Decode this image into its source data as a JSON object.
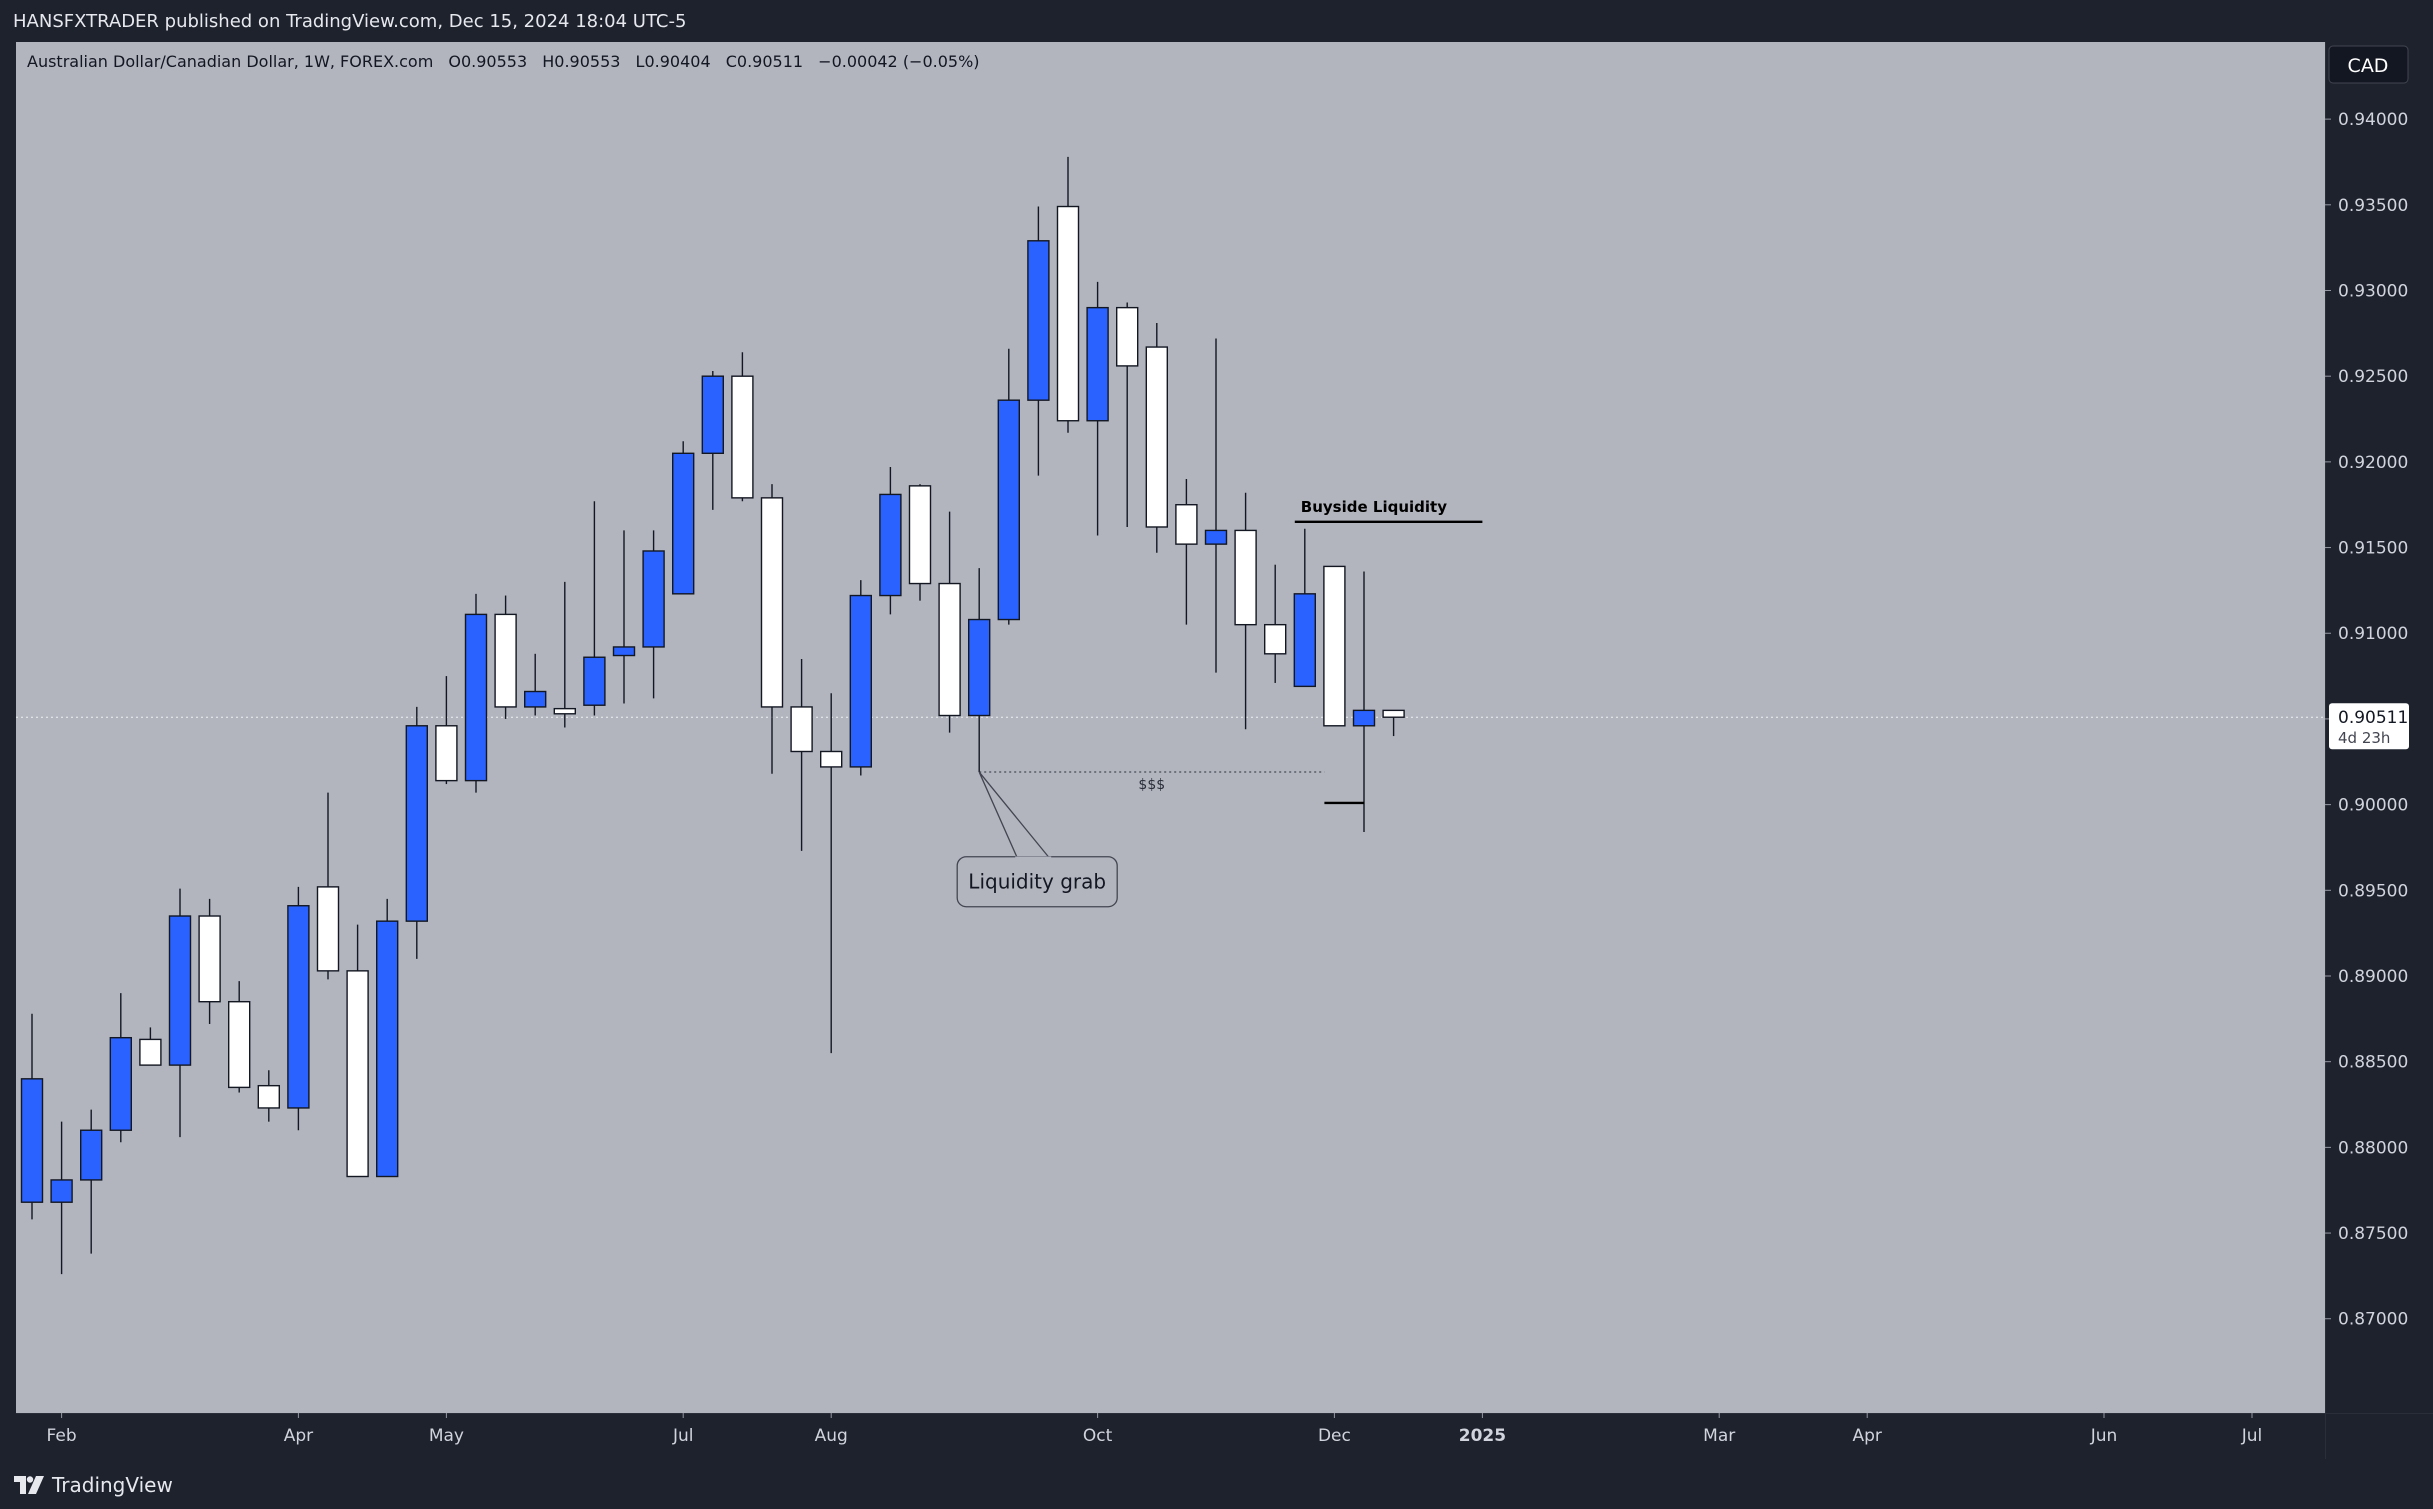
{
  "header": {
    "published_text": "HANSFXTRADER published on TradingView.com, Dec 15, 2024 18:04 UTC-5"
  },
  "footer": {
    "brand": "TradingView",
    "logo_icon": "tradingview-logo-icon"
  },
  "legend": {
    "symbol": "Australian Dollar/Canadian Dollar, 1W, FOREX.com",
    "open": "O0.90553",
    "high": "H0.90553",
    "low": "L0.90404",
    "close": "C0.90511",
    "change": "−0.00042 (−0.05%)"
  },
  "price_axis": {
    "currency_label": "CAD",
    "current_price": "0.90511",
    "countdown": "4d 23h"
  },
  "colors": {
    "background": "#b2b5be",
    "chrome": "#1e222d",
    "up_candle": "#2962ff",
    "down_candle": "#ffffff",
    "wick": "#131722"
  },
  "chart_data": {
    "type": "candlestick",
    "symbol": "AUDCAD",
    "timeframe": "1W",
    "ylim": [
      0.8645,
      0.9445
    ],
    "y_ticks": [
      "0.94000",
      "0.93500",
      "0.93000",
      "0.92500",
      "0.92000",
      "0.91500",
      "0.91000",
      "0.90500",
      "0.90000",
      "0.89500",
      "0.89000",
      "0.88500",
      "0.88000",
      "0.87500",
      "0.87000"
    ],
    "x_labels": [
      {
        "label": "Feb",
        "index": 1
      },
      {
        "label": "Apr",
        "index": 9
      },
      {
        "label": "May",
        "index": 14
      },
      {
        "label": "Jul",
        "index": 22
      },
      {
        "label": "Aug",
        "index": 27
      },
      {
        "label": "Oct",
        "index": 36
      },
      {
        "label": "Dec",
        "index": 44
      },
      {
        "label": "2025",
        "index": 49
      },
      {
        "label": "Mar",
        "index": 57
      },
      {
        "label": "Apr",
        "index": 62
      },
      {
        "label": "Jun",
        "index": 70
      },
      {
        "label": "Jul",
        "index": 75
      }
    ],
    "candles": [
      {
        "o": 0.8768,
        "h": 0.8878,
        "l": 0.8758,
        "c": 0.884
      },
      {
        "o": 0.8768,
        "h": 0.8815,
        "l": 0.8726,
        "c": 0.8781
      },
      {
        "o": 0.8781,
        "h": 0.8822,
        "l": 0.8738,
        "c": 0.881
      },
      {
        "o": 0.881,
        "h": 0.889,
        "l": 0.8803,
        "c": 0.8864
      },
      {
        "o": 0.8863,
        "h": 0.887,
        "l": 0.8848,
        "c": 0.8848
      },
      {
        "o": 0.8848,
        "h": 0.8951,
        "l": 0.8806,
        "c": 0.8935
      },
      {
        "o": 0.8935,
        "h": 0.8945,
        "l": 0.8872,
        "c": 0.8885
      },
      {
        "o": 0.8885,
        "h": 0.8897,
        "l": 0.8832,
        "c": 0.8835
      },
      {
        "o": 0.8836,
        "h": 0.8845,
        "l": 0.8815,
        "c": 0.8823
      },
      {
        "o": 0.8823,
        "h": 0.8952,
        "l": 0.881,
        "c": 0.8941
      },
      {
        "o": 0.8952,
        "h": 0.9007,
        "l": 0.8898,
        "c": 0.8903
      },
      {
        "o": 0.8903,
        "h": 0.893,
        "l": 0.8783,
        "c": 0.8783
      },
      {
        "o": 0.8783,
        "h": 0.8945,
        "l": 0.8783,
        "c": 0.8932
      },
      {
        "o": 0.8932,
        "h": 0.9057,
        "l": 0.891,
        "c": 0.9046
      },
      {
        "o": 0.9046,
        "h": 0.9075,
        "l": 0.9012,
        "c": 0.9014
      },
      {
        "o": 0.9014,
        "h": 0.9123,
        "l": 0.9007,
        "c": 0.9111
      },
      {
        "o": 0.9111,
        "h": 0.9122,
        "l": 0.905,
        "c": 0.9057
      },
      {
        "o": 0.9057,
        "h": 0.9088,
        "l": 0.9052,
        "c": 0.9066
      },
      {
        "o": 0.9056,
        "h": 0.913,
        "l": 0.9045,
        "c": 0.9053
      },
      {
        "o": 0.9058,
        "h": 0.9177,
        "l": 0.9052,
        "c": 0.9086
      },
      {
        "o": 0.9087,
        "h": 0.916,
        "l": 0.9059,
        "c": 0.9092
      },
      {
        "o": 0.9092,
        "h": 0.916,
        "l": 0.9062,
        "c": 0.9148
      },
      {
        "o": 0.9123,
        "h": 0.9212,
        "l": 0.9123,
        "c": 0.9205
      },
      {
        "o": 0.9205,
        "h": 0.9253,
        "l": 0.9172,
        "c": 0.925
      },
      {
        "o": 0.925,
        "h": 0.9264,
        "l": 0.9177,
        "c": 0.9179
      },
      {
        "o": 0.9179,
        "h": 0.9187,
        "l": 0.9018,
        "c": 0.9057
      },
      {
        "o": 0.9057,
        "h": 0.9085,
        "l": 0.8973,
        "c": 0.9031
      },
      {
        "o": 0.9031,
        "h": 0.9065,
        "l": 0.8855,
        "c": 0.9022
      },
      {
        "o": 0.9022,
        "h": 0.9131,
        "l": 0.9017,
        "c": 0.9122
      },
      {
        "o": 0.9122,
        "h": 0.9197,
        "l": 0.9111,
        "c": 0.9181
      },
      {
        "o": 0.9186,
        "h": 0.9187,
        "l": 0.9119,
        "c": 0.9129
      },
      {
        "o": 0.9129,
        "h": 0.9171,
        "l": 0.9042,
        "c": 0.9052
      },
      {
        "o": 0.9052,
        "h": 0.9138,
        "l": 0.9019,
        "c": 0.9108
      },
      {
        "o": 0.9108,
        "h": 0.9266,
        "l": 0.9105,
        "c": 0.9236
      },
      {
        "o": 0.9236,
        "h": 0.9349,
        "l": 0.9192,
        "c": 0.9329
      },
      {
        "o": 0.9349,
        "h": 0.9378,
        "l": 0.9217,
        "c": 0.9224
      },
      {
        "o": 0.9224,
        "h": 0.9305,
        "l": 0.9157,
        "c": 0.929
      },
      {
        "o": 0.929,
        "h": 0.9293,
        "l": 0.9162,
        "c": 0.9256
      },
      {
        "o": 0.9267,
        "h": 0.9281,
        "l": 0.9147,
        "c": 0.9162
      },
      {
        "o": 0.9175,
        "h": 0.919,
        "l": 0.9105,
        "c": 0.9152
      },
      {
        "o": 0.9152,
        "h": 0.9272,
        "l": 0.9077,
        "c": 0.916
      },
      {
        "o": 0.916,
        "h": 0.9182,
        "l": 0.9044,
        "c": 0.9105
      },
      {
        "o": 0.9105,
        "h": 0.914,
        "l": 0.9071,
        "c": 0.9088
      },
      {
        "o": 0.9069,
        "h": 0.9161,
        "l": 0.9069,
        "c": 0.9123
      },
      {
        "o": 0.9139,
        "h": 0.9139,
        "l": 0.9046,
        "c": 0.9046
      },
      {
        "o": 0.9046,
        "h": 0.9136,
        "l": 0.8984,
        "c": 0.9055
      },
      {
        "o": 0.9055,
        "h": 0.9055,
        "l": 0.904,
        "c": 0.9051
      }
    ],
    "annotations": [
      {
        "type": "level",
        "label": "Buyside Liquidity",
        "price": 0.9165,
        "from_index": 43,
        "to_index": 49
      },
      {
        "type": "dotted-level",
        "label": "$$$",
        "price": 0.9019,
        "from_index": 32,
        "to_index": 44
      },
      {
        "type": "level",
        "label": "",
        "price": 0.9001,
        "from_index": 44,
        "to_index": 45
      },
      {
        "type": "callout",
        "label": "Liquidity grab",
        "anchor_index": 32,
        "anchor_price": 0.9019,
        "box_price": 0.8955
      }
    ]
  }
}
